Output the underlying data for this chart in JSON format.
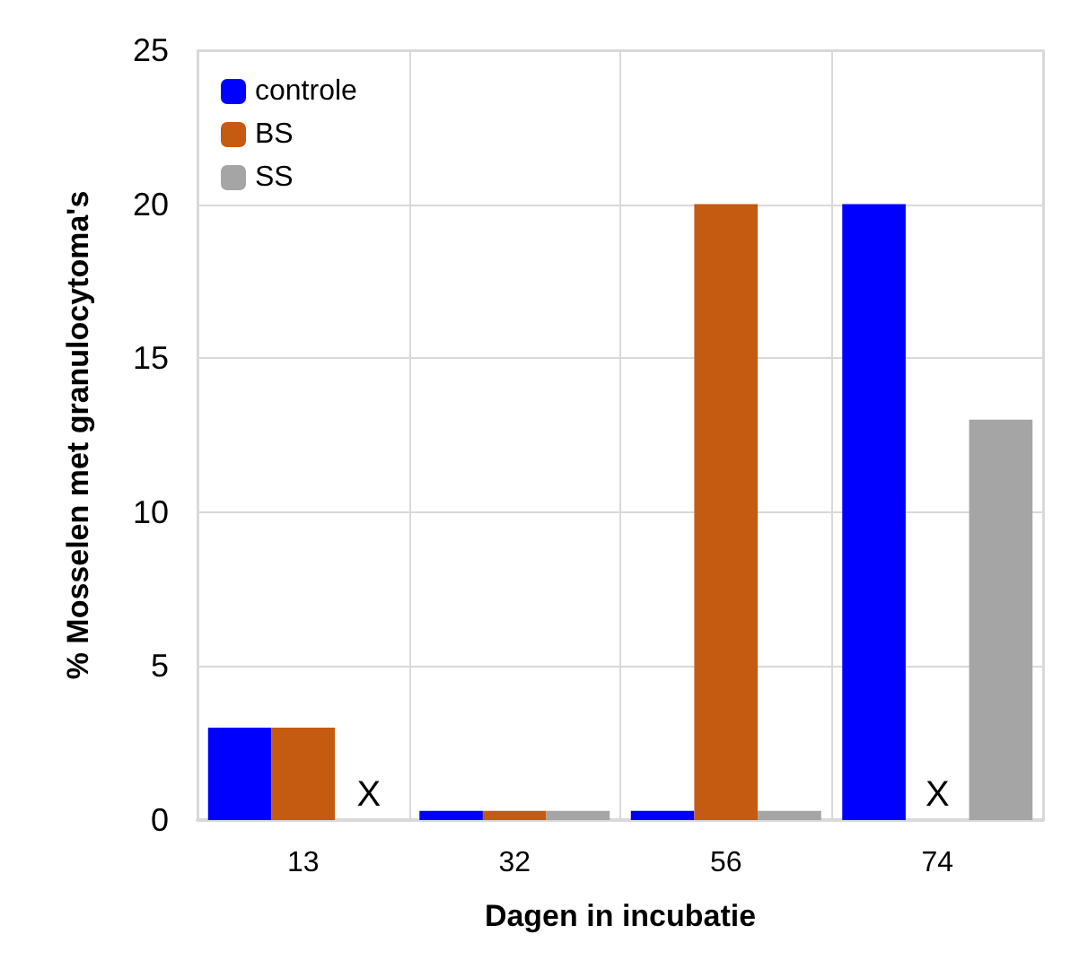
{
  "chart_data": {
    "type": "bar",
    "xlabel": "Dagen in incubatie",
    "ylabel": "% Mosselen met granulocytoma's",
    "categories": [
      "13",
      "32",
      "56",
      "74"
    ],
    "series": [
      {
        "name": "controle",
        "color": "#0000ff",
        "values": [
          3,
          0.3,
          0.3,
          20
        ]
      },
      {
        "name": "BS",
        "color": "#c55a11",
        "values": [
          3,
          0.3,
          20,
          null
        ]
      },
      {
        "name": "SS",
        "color": "#a5a5a5",
        "values": [
          null,
          0.3,
          0.3,
          13
        ]
      }
    ],
    "ylim": [
      0,
      25
    ],
    "yticks": [
      0,
      5,
      10,
      15,
      20,
      25
    ],
    "grid": true,
    "legend": "top left",
    "annotations": [
      "X",
      "X"
    ]
  }
}
